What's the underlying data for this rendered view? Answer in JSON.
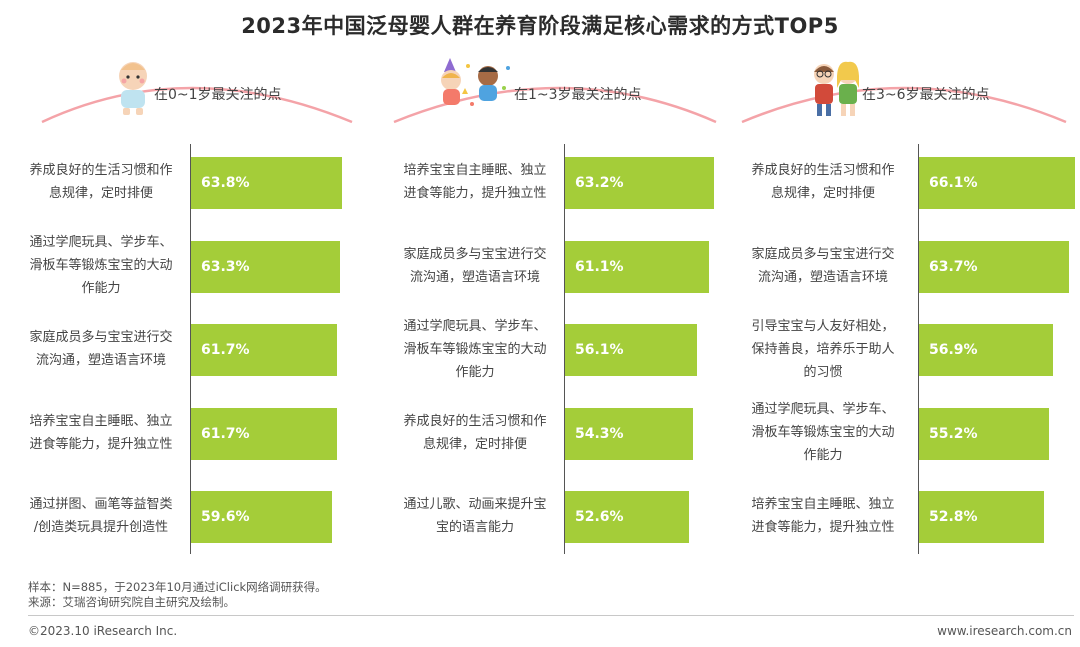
{
  "title": "2023年中国泛母婴人群在养育阶段满足核心需求的方式TOP5",
  "chart_data": [
    {
      "type": "bar",
      "header": "在0~1岁最关注的点",
      "categories": [
        "养成良好的生活习惯和作息规律，定时排便",
        "通过学爬玩具、学步车、滑板车等锻炼宝宝的大动作能力",
        "家庭成员多与宝宝进行交流沟通，塑造语言环境",
        "培养宝宝自主睡眠、独立进食等能力，提升独立性",
        "通过拼图、画笔等益智类/创造类玩具提升创造性"
      ],
      "values": [
        63.8,
        63.3,
        61.7,
        61.7,
        59.6
      ],
      "labels": [
        "63.8%",
        "63.3%",
        "61.7%",
        "61.7%",
        "59.6%"
      ],
      "color": "#a4cd39"
    },
    {
      "type": "bar",
      "header": "在1~3岁最关注的点",
      "categories": [
        "培养宝宝自主睡眠、独立进食等能力，提升独立性",
        "家庭成员多与宝宝进行交流沟通，塑造语言环境",
        "通过学爬玩具、学步车、滑板车等锻炼宝宝的大动作能力",
        "养成良好的生活习惯和作息规律，定时排便",
        "通过儿歌、动画来提升宝宝的语言能力"
      ],
      "values": [
        63.2,
        61.1,
        56.1,
        54.3,
        52.6
      ],
      "labels": [
        "63.2%",
        "61.1%",
        "56.1%",
        "54.3%",
        "52.6%"
      ],
      "color": "#a4cd39"
    },
    {
      "type": "bar",
      "header": "在3~6岁最关注的点",
      "categories": [
        "养成良好的生活习惯和作息规律，定时排便",
        "家庭成员多与宝宝进行交流沟通，塑造语言环境",
        "引导宝宝与人友好相处，保持善良，培养乐于助人的习惯",
        "通过学爬玩具、学步车、滑板车等锻炼宝宝的大动作能力",
        "培养宝宝自主睡眠、独立进食等能力，提升独立性"
      ],
      "values": [
        66.1,
        63.7,
        56.9,
        55.2,
        52.8
      ],
      "labels": [
        "66.1%",
        "63.7%",
        "56.9%",
        "55.2%",
        "52.8%"
      ],
      "color": "#a4cd39"
    }
  ],
  "labelLines": [
    [
      [
        "养成良好的生活习惯和作",
        "息规律，定时排便"
      ],
      [
        "通过学爬玩具、学步车、",
        "滑板车等锻炼宝宝的大动",
        "作能力"
      ],
      [
        "家庭成员多与宝宝进行交",
        "流沟通，塑造语言环境"
      ],
      [
        "培养宝宝自主睡眠、独立",
        "进食等能力，提升独立性"
      ],
      [
        "通过拼图、画笔等益智类",
        "/创造类玩具提升创造性"
      ]
    ],
    [
      [
        "培养宝宝自主睡眠、独立",
        "进食等能力，提升独立性"
      ],
      [
        "家庭成员多与宝宝进行交",
        "流沟通，塑造语言环境"
      ],
      [
        "通过学爬玩具、学步车、",
        "滑板车等锻炼宝宝的大动",
        "作能力"
      ],
      [
        "养成良好的生活习惯和作",
        "息规律，定时排便"
      ],
      [
        "通过儿歌、动画来提升宝",
        "宝的语言能力"
      ]
    ],
    [
      [
        "养成良好的生活习惯和作",
        "息规律，定时排便"
      ],
      [
        "家庭成员多与宝宝进行交",
        "流沟通，塑造语言环境"
      ],
      [
        "引导宝宝与人友好相处，",
        "保持善良，培养乐于助人",
        "的习惯"
      ],
      [
        "通过学爬玩具、学步车、",
        "滑板车等锻炼宝宝的大动",
        "作能力"
      ],
      [
        "培养宝宝自主睡眠、独立",
        "进食等能力，提升独立性"
      ]
    ]
  ],
  "icons": [
    "baby-icon",
    "toddlers-icon",
    "children-icon"
  ],
  "footer": {
    "sample": "样本：N=885，于2023年10月通过iClick网络调研获得。",
    "source": "来源：艾瑞咨询研究院自主研究及绘制。",
    "copyright": "©2023.10 iResearch Inc.",
    "website": "www.iresearch.com.cn"
  }
}
